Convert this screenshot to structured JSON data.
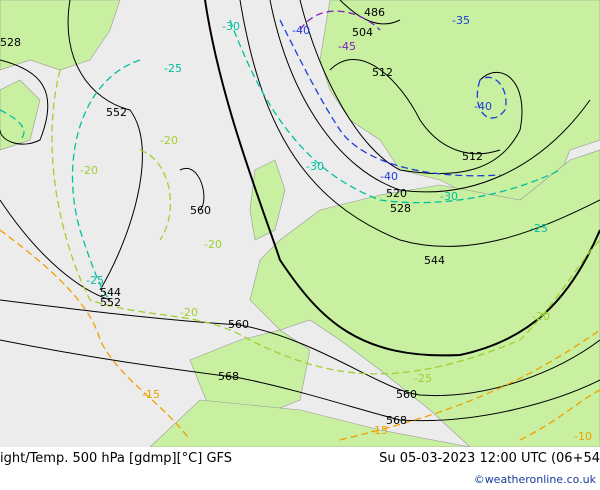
{
  "title": "ight/Temp. 500 hPa [gdmp][°C] GFS",
  "datetime": "Su 05-03-2023 12:00 UTC (06+54",
  "credit": "©weatheronline.co.uk",
  "colors": {
    "land": "#c8f0a0",
    "sea": "#ececec",
    "height_contour": "#000000",
    "temp_cold": "#1e3cdc",
    "temp_mid": "#00c0a0",
    "temp_warm": "#a0d030",
    "temp_warmest": "#f0a000"
  },
  "height_labels": [
    "486",
    "504",
    "512",
    "528",
    "552",
    "560",
    "544",
    "552",
    "520",
    "528",
    "512",
    "544",
    "560",
    "568",
    "560",
    "568"
  ],
  "temp_labels": [
    "-35",
    "-40",
    "-45",
    "-30",
    "-25",
    "-20",
    "-20",
    "-20",
    "-20",
    "-25",
    "-30",
    "-40",
    "-40",
    "-30",
    "-25",
    "-20",
    "-15",
    "-15",
    "-10",
    "-25"
  ]
}
